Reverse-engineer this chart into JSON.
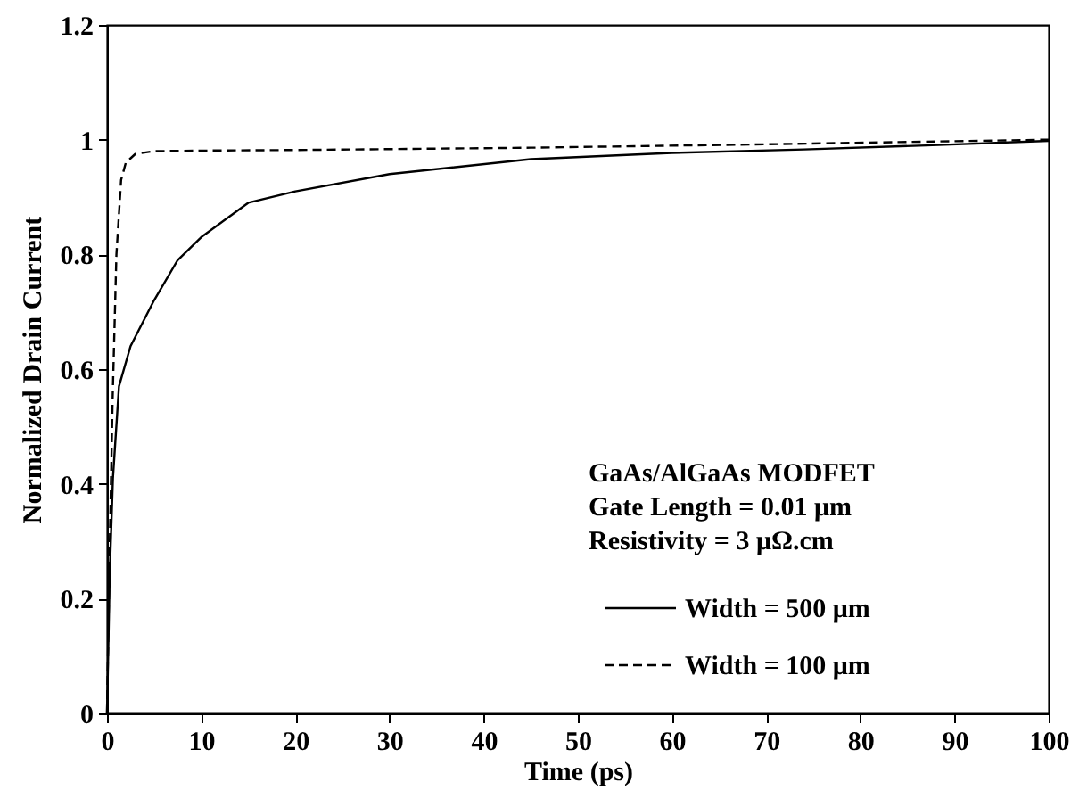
{
  "chart_data": {
    "type": "line",
    "xlabel": "Time (ps)",
    "ylabel": "Normalized Drain Current",
    "xlim": [
      0,
      100
    ],
    "xticks": [
      0,
      10,
      20,
      30,
      40,
      50,
      60,
      70,
      80,
      90,
      100
    ],
    "ylim": [
      0,
      1.2
    ],
    "yticks": [
      0,
      0.2,
      0.4,
      0.6,
      0.8,
      1,
      1.2
    ],
    "grid": false,
    "legend": "bottom right",
    "annotations": [
      "GaAs/AlGaAs MODFET",
      "Gate Length = 0.01 μm",
      "Resistivity = 3 μΩ.cm"
    ],
    "series": [
      {
        "name": "Width = 500 μm",
        "color": "#000000",
        "line_style": "solid",
        "x": [
          0,
          0.3,
          0.63,
          1.27,
          2.5,
          5,
          7.5,
          10,
          15,
          20,
          30,
          45,
          60,
          74,
          87,
          100
        ],
        "values": [
          0,
          0.25,
          0.41,
          0.57,
          0.64,
          0.72,
          0.79,
          0.83,
          0.89,
          0.91,
          0.94,
          0.966,
          0.977,
          0.983,
          0.99,
          0.998
        ]
      },
      {
        "name": "Width = 100 μm",
        "color": "#000000",
        "line_style": "dashed",
        "x": [
          0,
          0.3,
          0.6,
          1,
          1.5,
          2,
          3,
          5,
          10,
          20,
          45,
          70,
          100
        ],
        "values": [
          0,
          0.3,
          0.55,
          0.8,
          0.93,
          0.96,
          0.975,
          0.98,
          0.981,
          0.982,
          0.986,
          0.992,
          1.0
        ]
      }
    ]
  }
}
